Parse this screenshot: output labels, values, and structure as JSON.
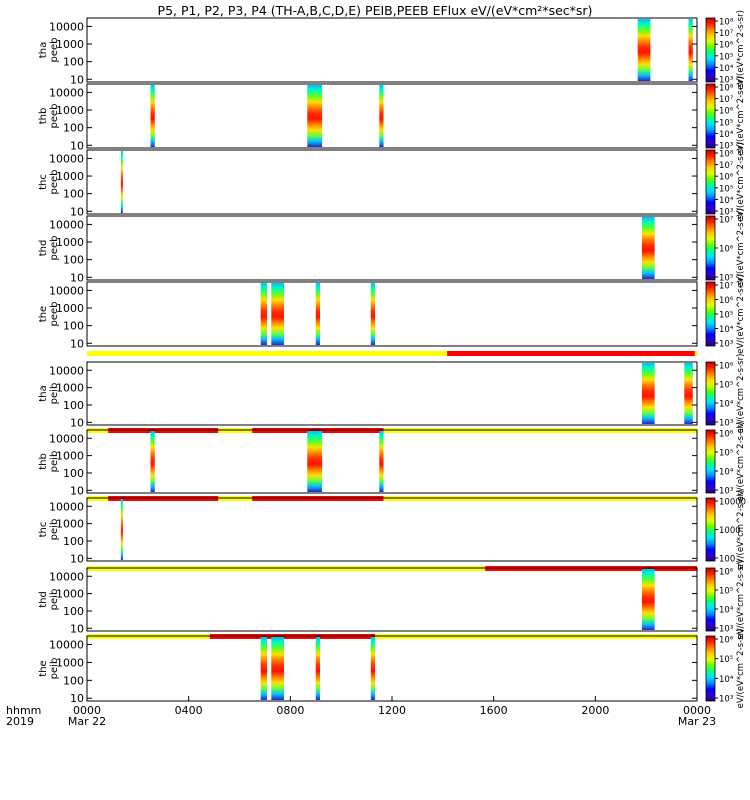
{
  "chart_data": {
    "type": "heatmap",
    "title": "P5, P1, P2, P3, P4 (TH-A,B,C,D,E) PEIB,PEEB EFlux eV/(eV*cm²*sec*sr)",
    "x_axis": {
      "label_line1": "hhmm",
      "label_line2": "2019",
      "range": [
        "2019-03-22 00:00",
        "2019-03-23 00:00"
      ],
      "ticks": [
        {
          "t": "00:00",
          "line1": "0000",
          "line2": "Mar 22"
        },
        {
          "t": "04:00",
          "line1": "0400",
          "line2": ""
        },
        {
          "t": "08:00",
          "line1": "0800",
          "line2": ""
        },
        {
          "t": "12:00",
          "line1": "1200",
          "line2": ""
        },
        {
          "t": "16:00",
          "line1": "1600",
          "line2": ""
        },
        {
          "t": "20:00",
          "line1": "2000",
          "line2": ""
        },
        {
          "t": "24:00",
          "line1": "0000",
          "line2": "Mar 23"
        }
      ]
    },
    "y_axis": {
      "scale": "log",
      "unit": "eV",
      "range": [
        7,
        30000
      ],
      "tick_labels": [
        "10",
        "100",
        "1000",
        "10000"
      ]
    },
    "panels": [
      {
        "probe": "tha",
        "product": "peeb",
        "colorbar": {
          "scale": "log",
          "range": [
            1000,
            100000000
          ],
          "tick_labels": [
            "10³",
            "10⁴",
            "10⁵",
            "10⁶",
            "10⁷",
            "10⁸"
          ],
          "label": "eV/(eV*cm^2-s-sr)"
        },
        "bursts": [
          {
            "start": "21:40",
            "end": "22:10"
          },
          {
            "start": "23:40",
            "end": "23:50"
          }
        ]
      },
      {
        "probe": "thb",
        "product": "peeb",
        "colorbar": {
          "scale": "log",
          "range": [
            1000,
            100000000
          ],
          "tick_labels": [
            "10³",
            "10⁴",
            "10⁵",
            "10⁶",
            "10⁷",
            "10⁸"
          ],
          "label": "eV/(eV*cm^2-s-sr)"
        },
        "bursts": [
          {
            "start": "02:30",
            "end": "02:40"
          },
          {
            "start": "08:40",
            "end": "09:15"
          },
          {
            "start": "11:30",
            "end": "11:40"
          }
        ]
      },
      {
        "probe": "thc",
        "product": "peeb",
        "colorbar": {
          "scale": "log",
          "range": [
            1000,
            100000000
          ],
          "tick_labels": [
            "10³",
            "10⁴",
            "10⁵",
            "10⁶",
            "10⁷",
            "10⁸"
          ],
          "label": "eV/(eV*cm^2-s-sr)"
        },
        "bursts": [
          {
            "start": "01:20",
            "end": "01:24"
          }
        ]
      },
      {
        "probe": "thd",
        "product": "peeb",
        "colorbar": {
          "scale": "log",
          "range": [
            10000,
            100000000
          ],
          "tick_labels": [
            "10⁵",
            "10⁶",
            "10⁷"
          ],
          "label": "eV/(eV*cm^2-s-sr)"
        },
        "bursts": [
          {
            "start": "21:50",
            "end": "22:20"
          }
        ]
      },
      {
        "probe": "the",
        "product": "peeb",
        "colorbar": {
          "scale": "log",
          "range": [
            1000,
            100000000
          ],
          "tick_labels": [
            "10³",
            "10⁴",
            "10⁵",
            "10⁶",
            "10⁷"
          ],
          "label": "eV/(eV*cm^2-s-sr)"
        },
        "bursts": [
          {
            "start": "06:50",
            "end": "07:05"
          },
          {
            "start": "07:15",
            "end": "07:45"
          },
          {
            "start": "09:00",
            "end": "09:10"
          },
          {
            "start": "11:10",
            "end": "11:20"
          }
        ]
      },
      {
        "probe": "tha",
        "product": "peib",
        "colorbar": {
          "scale": "log",
          "range": [
            1000,
            10000000
          ],
          "tick_labels": [
            "10³",
            "10⁴",
            "10⁵",
            "10⁶"
          ],
          "label": "eV/(eV*cm^2-s-sr)"
        },
        "mode_bar": [
          {
            "start": "00:00",
            "end": "14:10",
            "mode": "slow"
          },
          {
            "start": "14:10",
            "end": "23:55",
            "mode": "fast"
          },
          {
            "start": "23:55",
            "end": "24:00",
            "mode": "slow"
          }
        ],
        "bursts": [
          {
            "start": "21:50",
            "end": "22:20"
          },
          {
            "start": "23:30",
            "end": "23:50"
          }
        ]
      },
      {
        "probe": "thb",
        "product": "peib",
        "colorbar": {
          "scale": "log",
          "range": [
            1000,
            10000000
          ],
          "tick_labels": [
            "10³",
            "10⁴",
            "10⁵",
            "10⁶"
          ],
          "label": "eV/(eV*cm^2-s-sr)"
        },
        "mode_bar": [
          {
            "start": "00:00",
            "end": "00:50",
            "mode": "slow"
          },
          {
            "start": "00:50",
            "end": "05:10",
            "mode": "fast"
          },
          {
            "start": "05:10",
            "end": "06:30",
            "mode": "slow"
          },
          {
            "start": "06:30",
            "end": "11:40",
            "mode": "fast"
          },
          {
            "start": "11:40",
            "end": "24:00",
            "mode": "slow"
          }
        ],
        "bursts": [
          {
            "start": "02:30",
            "end": "02:40"
          },
          {
            "start": "08:40",
            "end": "09:15"
          },
          {
            "start": "11:30",
            "end": "11:40"
          }
        ]
      },
      {
        "probe": "thc",
        "product": "peib",
        "colorbar": {
          "scale": "log",
          "range": [
            100,
            100000
          ],
          "tick_labels": [
            "100",
            "1000",
            "10000"
          ],
          "label": "eV/(eV*cm^2-s-sr)"
        },
        "mode_bar": [
          {
            "start": "00:00",
            "end": "00:50",
            "mode": "slow"
          },
          {
            "start": "00:50",
            "end": "05:10",
            "mode": "fast"
          },
          {
            "start": "05:10",
            "end": "06:30",
            "mode": "slow"
          },
          {
            "start": "06:30",
            "end": "11:40",
            "mode": "fast"
          },
          {
            "start": "11:40",
            "end": "24:00",
            "mode": "slow"
          }
        ],
        "bursts": [
          {
            "start": "01:20",
            "end": "01:24"
          }
        ]
      },
      {
        "probe": "thd",
        "product": "peib",
        "colorbar": {
          "scale": "log",
          "range": [
            1000,
            10000000
          ],
          "tick_labels": [
            "10³",
            "10⁴",
            "10⁵",
            "10⁶"
          ],
          "label": "eV/(eV*cm^2-s-sr)"
        },
        "mode_bar": [
          {
            "start": "00:00",
            "end": "15:40",
            "mode": "slow"
          },
          {
            "start": "15:40",
            "end": "24:00",
            "mode": "fast"
          }
        ],
        "bursts": [
          {
            "start": "21:50",
            "end": "22:20"
          }
        ]
      },
      {
        "probe": "the",
        "product": "peib",
        "colorbar": {
          "scale": "log",
          "range": [
            1000,
            10000000
          ],
          "tick_labels": [
            "10³",
            "10⁴",
            "10⁵",
            "10⁶"
          ],
          "label": "eV/(eV*cm^2-s-sr)"
        },
        "mode_bar": [
          {
            "start": "00:00",
            "end": "04:50",
            "mode": "slow"
          },
          {
            "start": "04:50",
            "end": "11:20",
            "mode": "fast"
          },
          {
            "start": "11:20",
            "end": "24:00",
            "mode": "slow"
          }
        ],
        "bursts": [
          {
            "start": "06:50",
            "end": "07:05"
          },
          {
            "start": "07:15",
            "end": "07:45"
          },
          {
            "start": "09:00",
            "end": "09:10"
          },
          {
            "start": "11:10",
            "end": "11:20"
          }
        ]
      }
    ],
    "mode_colors": {
      "slow": "#ffff00",
      "fast": "#ff0000"
    },
    "colormap": [
      "#20007a",
      "#3000d0",
      "#0000ff",
      "#0090ff",
      "#00e0ff",
      "#00ff90",
      "#60ff00",
      "#e0ff00",
      "#ffd000",
      "#ff8000",
      "#ff2000",
      "#c00000"
    ]
  }
}
